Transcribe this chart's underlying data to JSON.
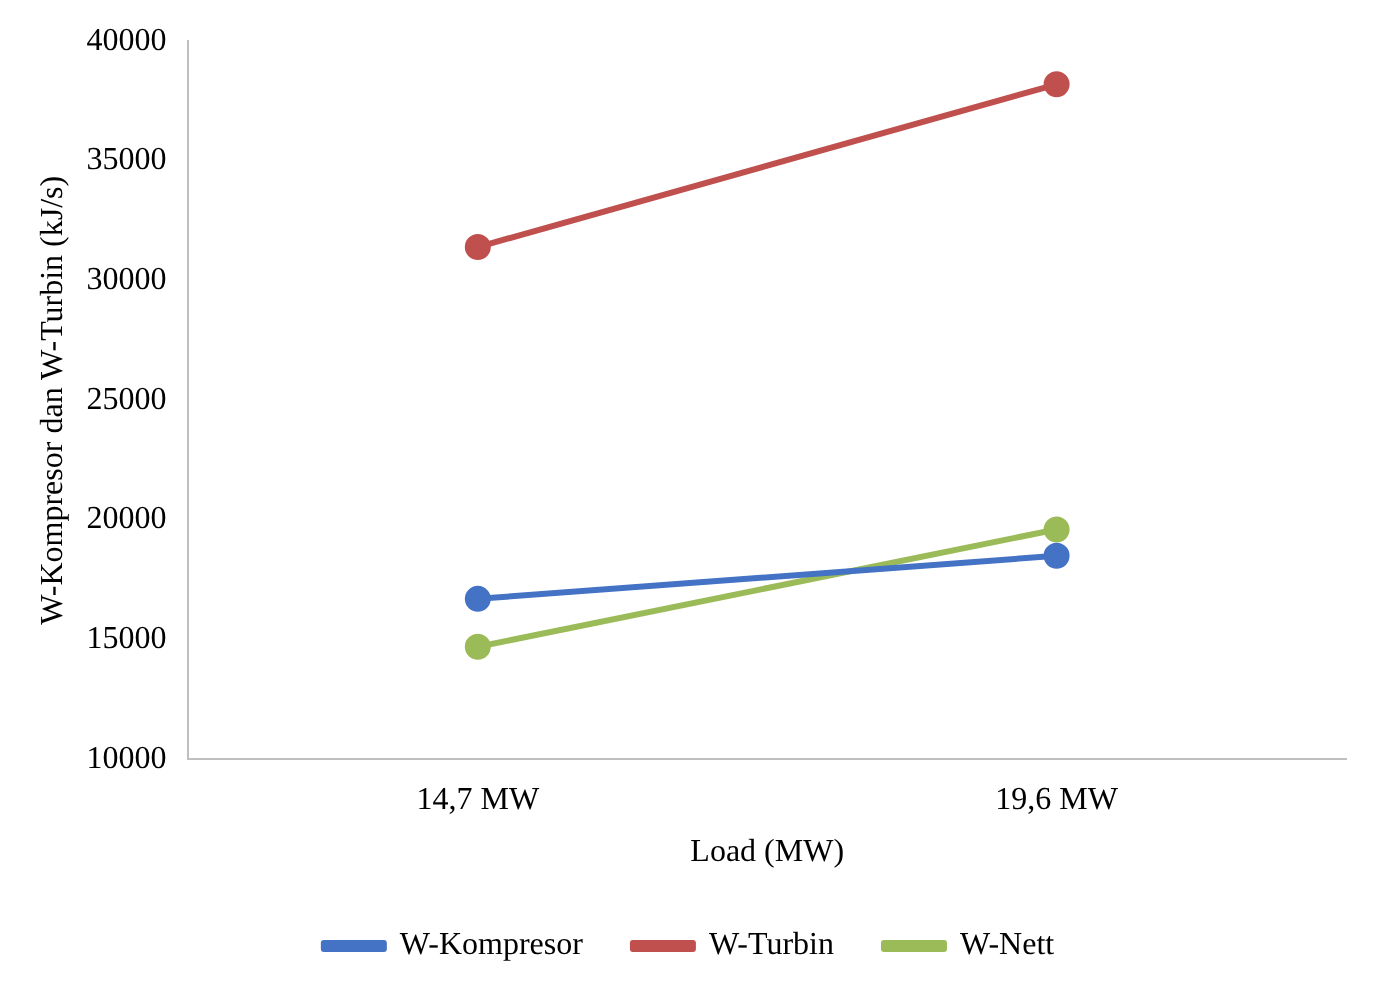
{
  "chart_data": {
    "type": "line",
    "xlabel": "Load (MW)",
    "ylabel": "W-Kompresor dan W-Turbin (kJ/s)",
    "categories": [
      "14,7 MW",
      "19,6 MW"
    ],
    "series": [
      {
        "name": "W-Kompresor",
        "color": "#4472c4",
        "values": [
          16700,
          18500
        ]
      },
      {
        "name": "W-Turbin",
        "color": "#c0504d",
        "values": [
          31400,
          38200
        ]
      },
      {
        "name": "W-Nett",
        "color": "#9bbb59",
        "values": [
          14700,
          19600
        ]
      }
    ],
    "ylim": [
      10000,
      40000
    ],
    "yticks": [
      10000,
      15000,
      20000,
      25000,
      30000,
      35000,
      40000
    ],
    "grid": false,
    "legend": "bottom",
    "marker": "circle"
  }
}
